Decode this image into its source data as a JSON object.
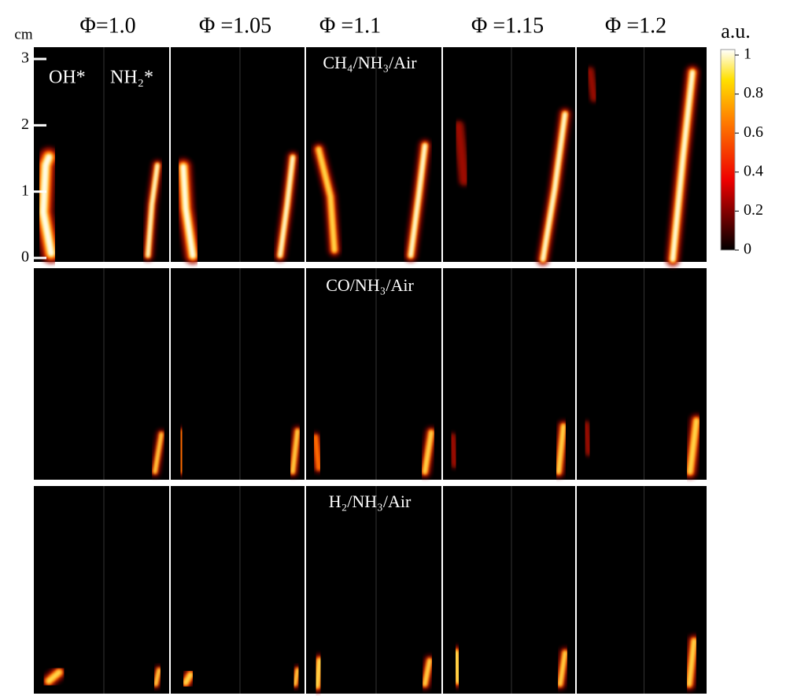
{
  "column_headers": [
    "Φ=1.0",
    "Φ =1.05",
    "Φ =1.1",
    "Φ =1.15",
    "Φ =1.2"
  ],
  "row_labels": [
    "CH₄/NH₃/Air",
    "CO/NH₃/Air",
    "H₂/NH₃/Air"
  ],
  "species_labels": [
    "OH*",
    "NH₂*"
  ],
  "y_axis": {
    "unit": "cm",
    "ylim": [
      0,
      3
    ],
    "ticks": [
      0,
      1,
      2,
      3
    ]
  },
  "colorbar": {
    "unit": "a.u.",
    "lim": [
      0,
      1
    ],
    "ticks": [
      0,
      0.2,
      0.4,
      0.6,
      0.8,
      1
    ]
  }
}
